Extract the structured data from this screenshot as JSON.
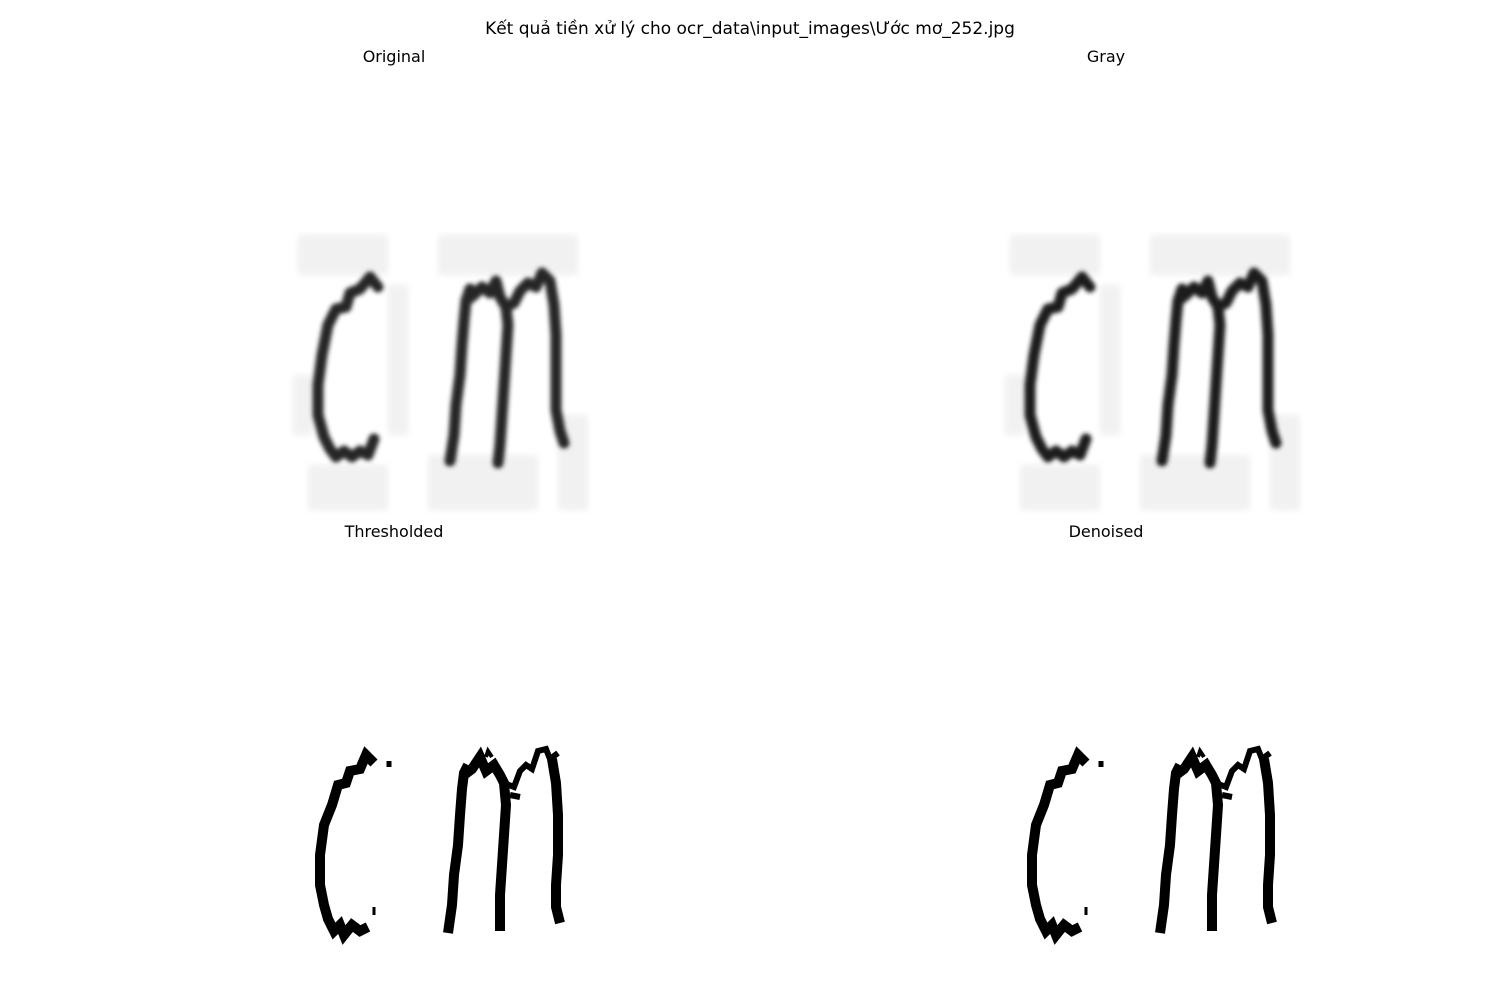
{
  "figure": {
    "title": "Kết quả tiền xử lý cho ocr_data\\input_images\\Ước mơ_252.jpg"
  },
  "panels": [
    {
      "title": "Original",
      "stage": "blurred",
      "ink_color": "#262626"
    },
    {
      "title": "Gray",
      "stage": "blurred",
      "ink_color": "#1f1f1f"
    },
    {
      "title": "Thresholded",
      "stage": "binary",
      "ink_color": "#000000"
    },
    {
      "title": "Denoised",
      "stage": "binary",
      "ink_color": "#000000"
    }
  ],
  "colors": {
    "background": "#ffffff",
    "noise": "#e8e8e8"
  }
}
